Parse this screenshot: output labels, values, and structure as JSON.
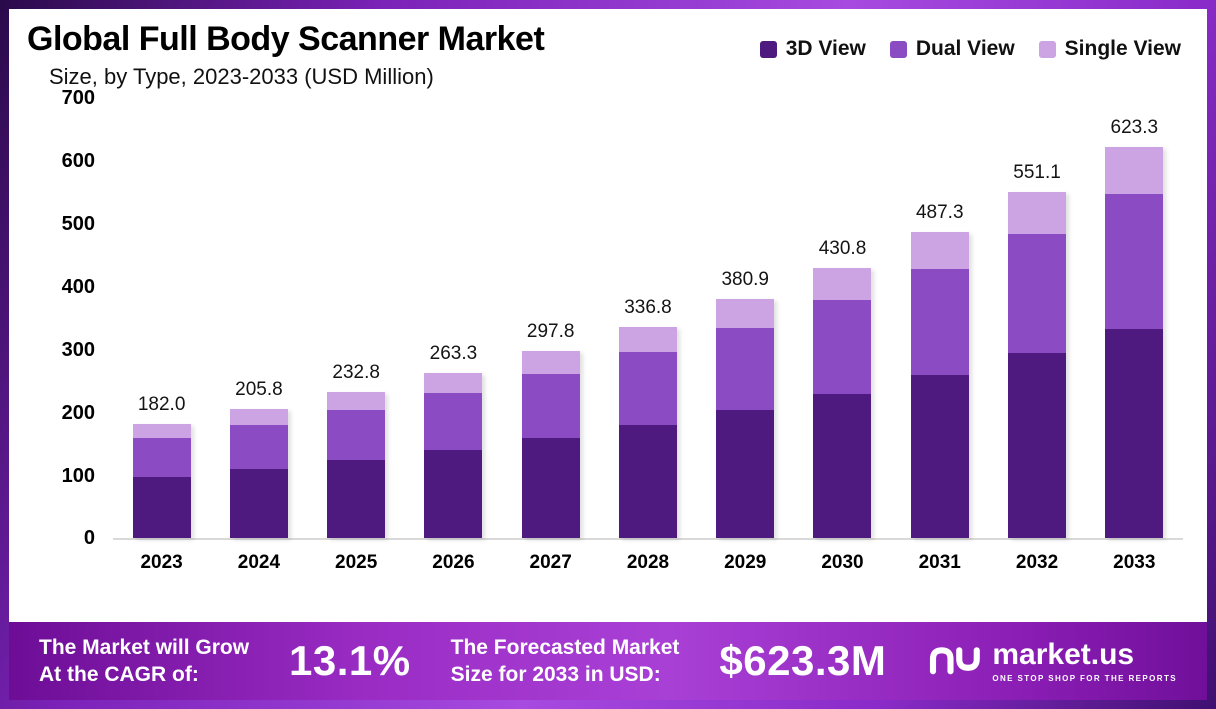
{
  "title": "Global Full Body Scanner Market",
  "subtitle": "Size, by Type, 2023-2033 (USD Million)",
  "chart_data": {
    "type": "bar",
    "stacked": true,
    "title": "Global Full Body Scanner Market Size, by Type, 2023-2033 (USD Million)",
    "categories": [
      "2023",
      "2024",
      "2025",
      "2026",
      "2027",
      "2028",
      "2029",
      "2030",
      "2031",
      "2032",
      "2033"
    ],
    "series": [
      {
        "name": "3D View",
        "color": "#4e1a80",
        "values": [
          97.4,
          110.1,
          124.6,
          140.9,
          159.3,
          180.2,
          203.8,
          230.5,
          260.7,
          294.9,
          333.5
        ]
      },
      {
        "name": "Dual View",
        "color": "#8b4bc3",
        "values": [
          62.8,
          71.0,
          80.3,
          90.8,
          102.7,
          116.2,
          131.4,
          148.6,
          168.1,
          190.1,
          215.0
        ]
      },
      {
        "name": "Single View",
        "color": "#cca3e3",
        "values": [
          21.8,
          24.7,
          27.9,
          31.6,
          35.8,
          40.4,
          45.7,
          51.7,
          58.5,
          66.1,
          74.8
        ]
      }
    ],
    "totals": [
      182.0,
      205.8,
      232.8,
      263.3,
      297.8,
      336.8,
      380.9,
      430.8,
      487.3,
      551.1,
      623.3
    ],
    "ylim": [
      0,
      700
    ],
    "yticks": [
      0,
      100,
      200,
      300,
      400,
      500,
      600,
      700
    ],
    "legend_position": "top-right",
    "grid": false
  },
  "footer": {
    "cagr_label": "The Market will Grow\nAt the CAGR of:",
    "cagr_value": "13.1%",
    "forecast_label": "The Forecasted Market\nSize for 2033 in USD:",
    "forecast_value": "$623.3M",
    "brand_name": "market.us",
    "brand_tagline": "ONE STOP SHOP FOR THE REPORTS"
  }
}
